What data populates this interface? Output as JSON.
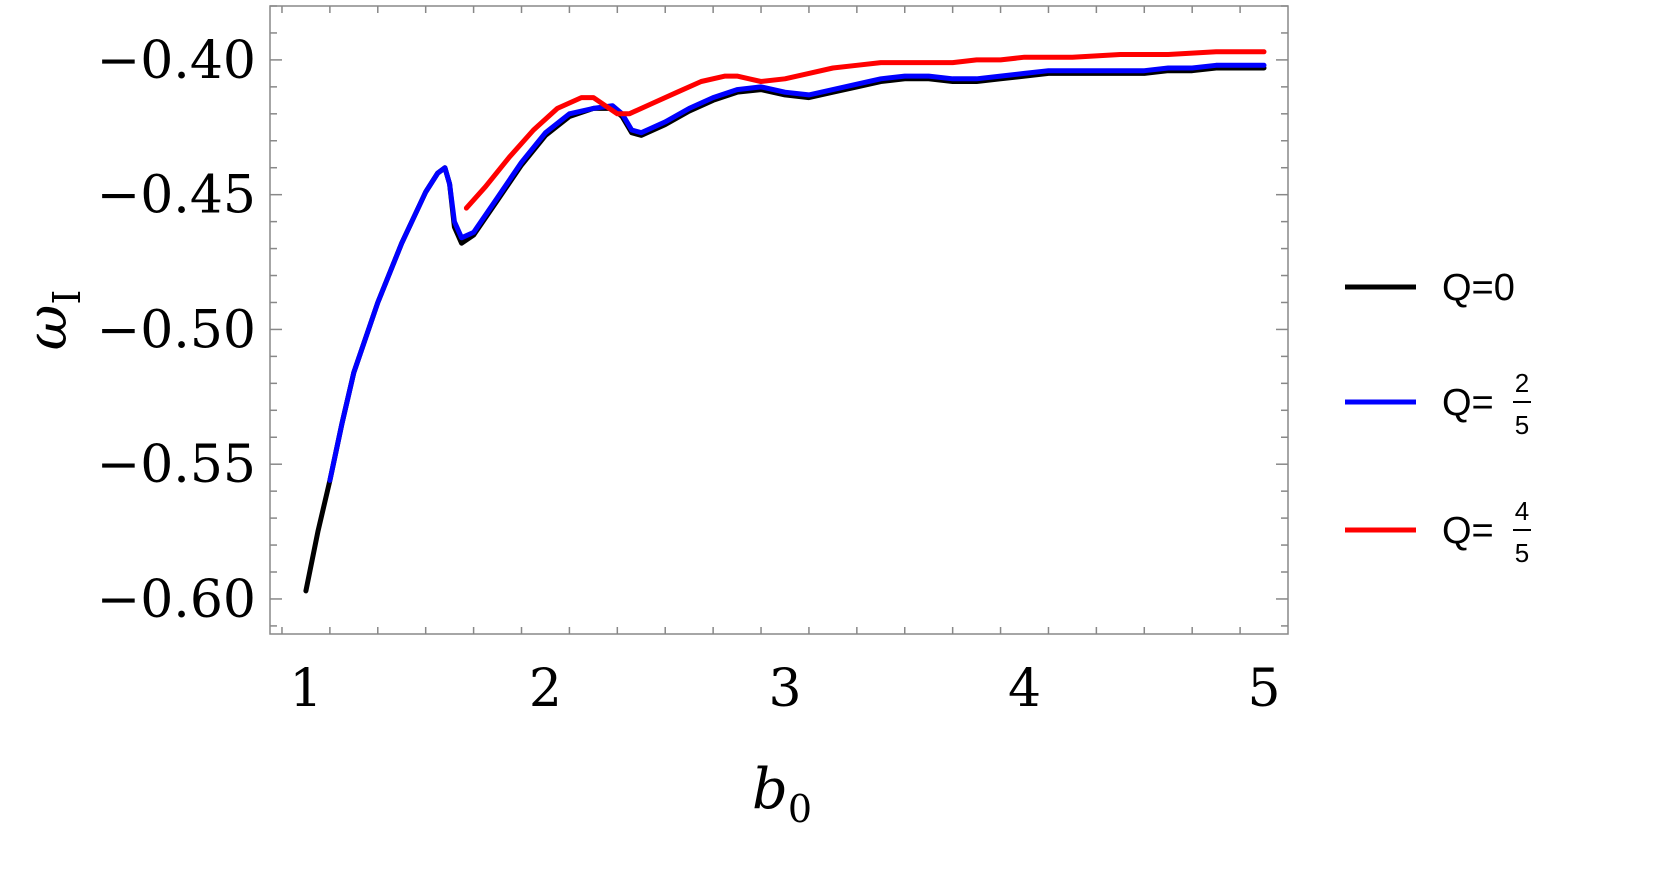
{
  "chart_data": {
    "type": "line",
    "title": "",
    "xlabel": "b",
    "xlabel_sub": "0",
    "ylabel": "ω",
    "ylabel_sub": "I",
    "xlim": [
      0.85,
      5.1
    ],
    "ylim": [
      -0.613,
      -0.38
    ],
    "xticks": [
      1,
      2,
      3,
      4,
      5
    ],
    "xtick_labels": [
      "1",
      "2",
      "3",
      "4",
      "5"
    ],
    "yticks": [
      -0.6,
      -0.55,
      -0.5,
      -0.45,
      -0.4
    ],
    "ytick_labels": [
      "−0.60",
      "−0.55",
      "−0.50",
      "−0.45",
      "−0.40"
    ],
    "grid": false,
    "legend_position": "right",
    "series": [
      {
        "name": "Q=0",
        "legend_prefix": "Q=",
        "legend_value": "0",
        "color": "#000000",
        "x": [
          1.0,
          1.05,
          1.1,
          1.15,
          1.2,
          1.3,
          1.4,
          1.5,
          1.55,
          1.58,
          1.6,
          1.62,
          1.65,
          1.7,
          1.8,
          1.9,
          2.0,
          2.1,
          2.2,
          2.28,
          2.32,
          2.36,
          2.4,
          2.5,
          2.6,
          2.7,
          2.8,
          2.9,
          3.0,
          3.1,
          3.2,
          3.3,
          3.4,
          3.5,
          3.6,
          3.7,
          3.8,
          3.9,
          4.0,
          4.1,
          4.2,
          4.3,
          4.4,
          4.5,
          4.6,
          4.7,
          4.8,
          4.9,
          5.0
        ],
        "y": [
          -0.597,
          -0.575,
          -0.556,
          -0.535,
          -0.516,
          -0.49,
          -0.468,
          -0.449,
          -0.442,
          -0.44,
          -0.446,
          -0.462,
          -0.468,
          -0.465,
          -0.452,
          -0.439,
          -0.428,
          -0.421,
          -0.418,
          -0.418,
          -0.421,
          -0.427,
          -0.428,
          -0.424,
          -0.419,
          -0.415,
          -0.412,
          -0.411,
          -0.413,
          -0.414,
          -0.412,
          -0.41,
          -0.408,
          -0.407,
          -0.407,
          -0.408,
          -0.408,
          -0.407,
          -0.406,
          -0.405,
          -0.405,
          -0.405,
          -0.405,
          -0.405,
          -0.404,
          -0.404,
          -0.403,
          -0.403,
          -0.403
        ]
      },
      {
        "name": "Q=2/5",
        "legend_prefix": "Q=",
        "legend_num": "2",
        "legend_den": "5",
        "color": "#0000ff",
        "x": [
          1.1,
          1.15,
          1.2,
          1.3,
          1.4,
          1.5,
          1.55,
          1.58,
          1.6,
          1.62,
          1.65,
          1.7,
          1.8,
          1.9,
          2.0,
          2.1,
          2.2,
          2.28,
          2.32,
          2.36,
          2.4,
          2.5,
          2.6,
          2.7,
          2.8,
          2.9,
          3.0,
          3.1,
          3.2,
          3.3,
          3.4,
          3.5,
          3.6,
          3.7,
          3.8,
          3.9,
          4.0,
          4.1,
          4.2,
          4.3,
          4.4,
          4.5,
          4.6,
          4.7,
          4.8,
          4.9,
          5.0
        ],
        "y": [
          -0.556,
          -0.535,
          -0.516,
          -0.49,
          -0.468,
          -0.449,
          -0.442,
          -0.44,
          -0.446,
          -0.46,
          -0.466,
          -0.464,
          -0.451,
          -0.438,
          -0.427,
          -0.42,
          -0.418,
          -0.417,
          -0.42,
          -0.426,
          -0.427,
          -0.423,
          -0.418,
          -0.414,
          -0.411,
          -0.41,
          -0.412,
          -0.413,
          -0.411,
          -0.409,
          -0.407,
          -0.406,
          -0.406,
          -0.407,
          -0.407,
          -0.406,
          -0.405,
          -0.404,
          -0.404,
          -0.404,
          -0.404,
          -0.404,
          -0.403,
          -0.403,
          -0.402,
          -0.402,
          -0.402
        ]
      },
      {
        "name": "Q=4/5",
        "legend_prefix": "Q=",
        "legend_num": "4",
        "legend_den": "5",
        "color": "#ff0000",
        "x": [
          1.67,
          1.75,
          1.85,
          1.95,
          2.05,
          2.15,
          2.2,
          2.25,
          2.3,
          2.35,
          2.45,
          2.55,
          2.65,
          2.75,
          2.8,
          2.85,
          2.9,
          3.0,
          3.1,
          3.2,
          3.3,
          3.4,
          3.5,
          3.6,
          3.7,
          3.8,
          3.9,
          4.0,
          4.2,
          4.4,
          4.6,
          4.8,
          5.0
        ],
        "y": [
          -0.455,
          -0.447,
          -0.436,
          -0.426,
          -0.418,
          -0.414,
          -0.414,
          -0.417,
          -0.42,
          -0.42,
          -0.416,
          -0.412,
          -0.408,
          -0.406,
          -0.406,
          -0.407,
          -0.408,
          -0.407,
          -0.405,
          -0.403,
          -0.402,
          -0.401,
          -0.401,
          -0.401,
          -0.401,
          -0.4,
          -0.4,
          -0.399,
          -0.399,
          -0.398,
          -0.398,
          -0.397,
          -0.397
        ]
      }
    ]
  }
}
